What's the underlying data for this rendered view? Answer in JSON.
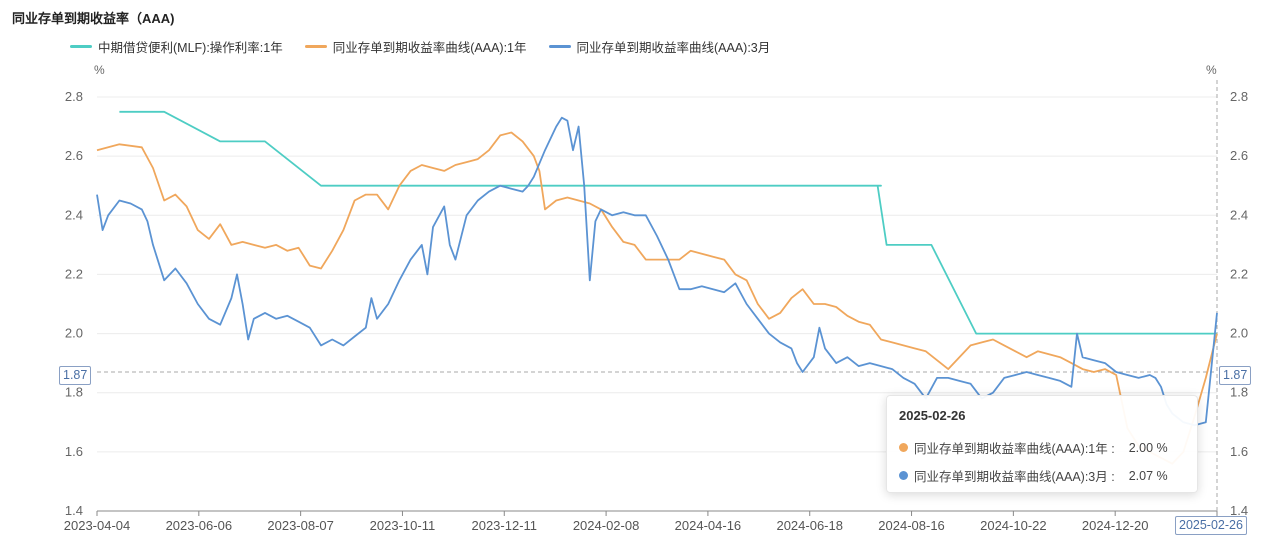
{
  "title": "同业存单到期收益率（AAA)",
  "unit_left": "%",
  "unit_right": "%",
  "tooltip": {
    "date": "2025-02-26",
    "rows": [
      {
        "label": "同业存单到期收益率曲线(AAA):1年 :",
        "value": "2.00 %",
        "color": "#f0a75c"
      },
      {
        "label": "同业存单到期收益率曲线(AAA):3月 :",
        "value": "2.07 %",
        "color": "#5b93d3"
      }
    ]
  },
  "crosshair": {
    "y_value": 1.87,
    "y_label": "1.87",
    "x_label": "2025-02-26"
  },
  "chart_data": {
    "type": "line",
    "x_ticks": [
      "2023-04-04",
      "2023-06-06",
      "2023-08-07",
      "2023-10-11",
      "2023-12-11",
      "2024-02-08",
      "2024-04-16",
      "2024-06-18",
      "2024-08-16",
      "2024-10-22",
      "2024-12-20",
      "2025-02-26"
    ],
    "y_ticks": [
      "1.4",
      "1.6",
      "1.8",
      "2.0",
      "2.2",
      "2.4",
      "2.6",
      "2.8"
    ],
    "ylim": [
      1.4,
      2.8
    ],
    "grid": true,
    "legend_position": "top-left",
    "series": [
      {
        "name": "中期借贷便利(MLF):操作利率:1年",
        "color": "#4ecdc4",
        "points": [
          [
            0.02,
            2.75
          ],
          [
            0.06,
            2.75
          ],
          [
            0.11,
            2.65
          ],
          [
            0.15,
            2.65
          ],
          [
            0.2,
            2.5
          ],
          [
            0.3,
            2.5
          ],
          [
            0.4,
            2.5
          ],
          [
            0.5,
            2.5
          ],
          [
            0.6,
            2.5
          ],
          [
            0.7,
            2.5
          ],
          [
            0.697,
            2.5
          ],
          [
            0.705,
            2.3
          ],
          [
            0.745,
            2.3
          ],
          [
            0.785,
            2.0
          ],
          [
            0.85,
            2.0
          ],
          [
            0.9,
            2.0
          ],
          [
            0.95,
            2.0
          ],
          [
            1.0,
            2.0
          ]
        ]
      },
      {
        "name": "同业存单到期收益率曲线(AAA):1年",
        "color": "#f0a75c",
        "points": [
          [
            0.0,
            2.62
          ],
          [
            0.02,
            2.64
          ],
          [
            0.04,
            2.63
          ],
          [
            0.05,
            2.56
          ],
          [
            0.06,
            2.45
          ],
          [
            0.07,
            2.47
          ],
          [
            0.08,
            2.43
          ],
          [
            0.09,
            2.35
          ],
          [
            0.1,
            2.32
          ],
          [
            0.11,
            2.37
          ],
          [
            0.12,
            2.3
          ],
          [
            0.13,
            2.31
          ],
          [
            0.14,
            2.3
          ],
          [
            0.15,
            2.29
          ],
          [
            0.16,
            2.3
          ],
          [
            0.17,
            2.28
          ],
          [
            0.18,
            2.29
          ],
          [
            0.19,
            2.23
          ],
          [
            0.2,
            2.22
          ],
          [
            0.21,
            2.28
          ],
          [
            0.22,
            2.35
          ],
          [
            0.23,
            2.45
          ],
          [
            0.24,
            2.47
          ],
          [
            0.25,
            2.47
          ],
          [
            0.26,
            2.42
          ],
          [
            0.27,
            2.5
          ],
          [
            0.28,
            2.55
          ],
          [
            0.29,
            2.57
          ],
          [
            0.3,
            2.56
          ],
          [
            0.31,
            2.55
          ],
          [
            0.32,
            2.57
          ],
          [
            0.33,
            2.58
          ],
          [
            0.34,
            2.59
          ],
          [
            0.35,
            2.62
          ],
          [
            0.36,
            2.67
          ],
          [
            0.37,
            2.68
          ],
          [
            0.38,
            2.65
          ],
          [
            0.39,
            2.6
          ],
          [
            0.395,
            2.55
          ],
          [
            0.4,
            2.42
          ],
          [
            0.41,
            2.45
          ],
          [
            0.42,
            2.46
          ],
          [
            0.43,
            2.45
          ],
          [
            0.44,
            2.44
          ],
          [
            0.45,
            2.42
          ],
          [
            0.46,
            2.36
          ],
          [
            0.47,
            2.31
          ],
          [
            0.48,
            2.3
          ],
          [
            0.49,
            2.25
          ],
          [
            0.5,
            2.25
          ],
          [
            0.51,
            2.25
          ],
          [
            0.52,
            2.25
          ],
          [
            0.53,
            2.28
          ],
          [
            0.54,
            2.27
          ],
          [
            0.55,
            2.26
          ],
          [
            0.56,
            2.25
          ],
          [
            0.57,
            2.2
          ],
          [
            0.58,
            2.18
          ],
          [
            0.59,
            2.1
          ],
          [
            0.6,
            2.05
          ],
          [
            0.61,
            2.07
          ],
          [
            0.62,
            2.12
          ],
          [
            0.63,
            2.15
          ],
          [
            0.64,
            2.1
          ],
          [
            0.65,
            2.1
          ],
          [
            0.66,
            2.09
          ],
          [
            0.67,
            2.06
          ],
          [
            0.68,
            2.04
          ],
          [
            0.69,
            2.03
          ],
          [
            0.7,
            1.98
          ],
          [
            0.71,
            1.97
          ],
          [
            0.72,
            1.96
          ],
          [
            0.73,
            1.95
          ],
          [
            0.74,
            1.94
          ],
          [
            0.75,
            1.91
          ],
          [
            0.76,
            1.88
          ],
          [
            0.77,
            1.92
          ],
          [
            0.78,
            1.96
          ],
          [
            0.79,
            1.97
          ],
          [
            0.8,
            1.98
          ],
          [
            0.81,
            1.96
          ],
          [
            0.82,
            1.94
          ],
          [
            0.83,
            1.92
          ],
          [
            0.84,
            1.94
          ],
          [
            0.85,
            1.93
          ],
          [
            0.86,
            1.92
          ],
          [
            0.87,
            1.9
          ],
          [
            0.88,
            1.88
          ],
          [
            0.89,
            1.87
          ],
          [
            0.9,
            1.88
          ],
          [
            0.91,
            1.86
          ],
          [
            0.92,
            1.68
          ],
          [
            0.93,
            1.62
          ],
          [
            0.94,
            1.6
          ],
          [
            0.95,
            1.58
          ],
          [
            0.96,
            1.56
          ],
          [
            0.97,
            1.6
          ],
          [
            0.98,
            1.72
          ],
          [
            0.99,
            1.85
          ],
          [
            1.0,
            2.0
          ]
        ]
      },
      {
        "name": "同业存单到期收益率曲线(AAA):3月",
        "color": "#5b93d3",
        "points": [
          [
            0.0,
            2.47
          ],
          [
            0.005,
            2.35
          ],
          [
            0.01,
            2.4
          ],
          [
            0.02,
            2.45
          ],
          [
            0.03,
            2.44
          ],
          [
            0.04,
            2.42
          ],
          [
            0.045,
            2.38
          ],
          [
            0.05,
            2.3
          ],
          [
            0.06,
            2.18
          ],
          [
            0.07,
            2.22
          ],
          [
            0.08,
            2.17
          ],
          [
            0.09,
            2.1
          ],
          [
            0.1,
            2.05
          ],
          [
            0.11,
            2.03
          ],
          [
            0.12,
            2.12
          ],
          [
            0.125,
            2.2
          ],
          [
            0.13,
            2.1
          ],
          [
            0.135,
            1.98
          ],
          [
            0.14,
            2.05
          ],
          [
            0.15,
            2.07
          ],
          [
            0.16,
            2.05
          ],
          [
            0.17,
            2.06
          ],
          [
            0.18,
            2.04
          ],
          [
            0.19,
            2.02
          ],
          [
            0.2,
            1.96
          ],
          [
            0.21,
            1.98
          ],
          [
            0.22,
            1.96
          ],
          [
            0.23,
            1.99
          ],
          [
            0.24,
            2.02
          ],
          [
            0.245,
            2.12
          ],
          [
            0.25,
            2.05
          ],
          [
            0.26,
            2.1
          ],
          [
            0.27,
            2.18
          ],
          [
            0.28,
            2.25
          ],
          [
            0.29,
            2.3
          ],
          [
            0.295,
            2.2
          ],
          [
            0.3,
            2.36
          ],
          [
            0.31,
            2.43
          ],
          [
            0.315,
            2.3
          ],
          [
            0.32,
            2.25
          ],
          [
            0.33,
            2.4
          ],
          [
            0.34,
            2.45
          ],
          [
            0.35,
            2.48
          ],
          [
            0.36,
            2.5
          ],
          [
            0.37,
            2.49
          ],
          [
            0.38,
            2.48
          ],
          [
            0.385,
            2.5
          ],
          [
            0.39,
            2.53
          ],
          [
            0.4,
            2.62
          ],
          [
            0.41,
            2.7
          ],
          [
            0.415,
            2.73
          ],
          [
            0.42,
            2.72
          ],
          [
            0.425,
            2.62
          ],
          [
            0.43,
            2.7
          ],
          [
            0.435,
            2.5
          ],
          [
            0.44,
            2.18
          ],
          [
            0.445,
            2.38
          ],
          [
            0.45,
            2.42
          ],
          [
            0.46,
            2.4
          ],
          [
            0.47,
            2.41
          ],
          [
            0.48,
            2.4
          ],
          [
            0.49,
            2.4
          ],
          [
            0.5,
            2.33
          ],
          [
            0.51,
            2.25
          ],
          [
            0.52,
            2.15
          ],
          [
            0.53,
            2.15
          ],
          [
            0.54,
            2.16
          ],
          [
            0.55,
            2.15
          ],
          [
            0.56,
            2.14
          ],
          [
            0.57,
            2.17
          ],
          [
            0.58,
            2.1
          ],
          [
            0.59,
            2.05
          ],
          [
            0.6,
            2.0
          ],
          [
            0.61,
            1.97
          ],
          [
            0.62,
            1.95
          ],
          [
            0.625,
            1.9
          ],
          [
            0.63,
            1.87
          ],
          [
            0.64,
            1.92
          ],
          [
            0.645,
            2.02
          ],
          [
            0.65,
            1.95
          ],
          [
            0.66,
            1.9
          ],
          [
            0.67,
            1.92
          ],
          [
            0.68,
            1.89
          ],
          [
            0.69,
            1.9
          ],
          [
            0.7,
            1.89
          ],
          [
            0.71,
            1.88
          ],
          [
            0.72,
            1.85
          ],
          [
            0.73,
            1.83
          ],
          [
            0.74,
            1.78
          ],
          [
            0.75,
            1.85
          ],
          [
            0.76,
            1.85
          ],
          [
            0.77,
            1.84
          ],
          [
            0.78,
            1.83
          ],
          [
            0.79,
            1.78
          ],
          [
            0.8,
            1.8
          ],
          [
            0.81,
            1.85
          ],
          [
            0.82,
            1.86
          ],
          [
            0.83,
            1.87
          ],
          [
            0.84,
            1.86
          ],
          [
            0.85,
            1.85
          ],
          [
            0.86,
            1.84
          ],
          [
            0.87,
            1.82
          ],
          [
            0.875,
            2.0
          ],
          [
            0.88,
            1.92
          ],
          [
            0.89,
            1.91
          ],
          [
            0.9,
            1.9
          ],
          [
            0.91,
            1.87
          ],
          [
            0.92,
            1.86
          ],
          [
            0.93,
            1.85
          ],
          [
            0.94,
            1.86
          ],
          [
            0.945,
            1.85
          ],
          [
            0.95,
            1.82
          ],
          [
            0.955,
            1.76
          ],
          [
            0.96,
            1.73
          ],
          [
            0.97,
            1.7
          ],
          [
            0.98,
            1.69
          ],
          [
            0.99,
            1.7
          ],
          [
            1.0,
            2.07
          ]
        ]
      }
    ]
  }
}
